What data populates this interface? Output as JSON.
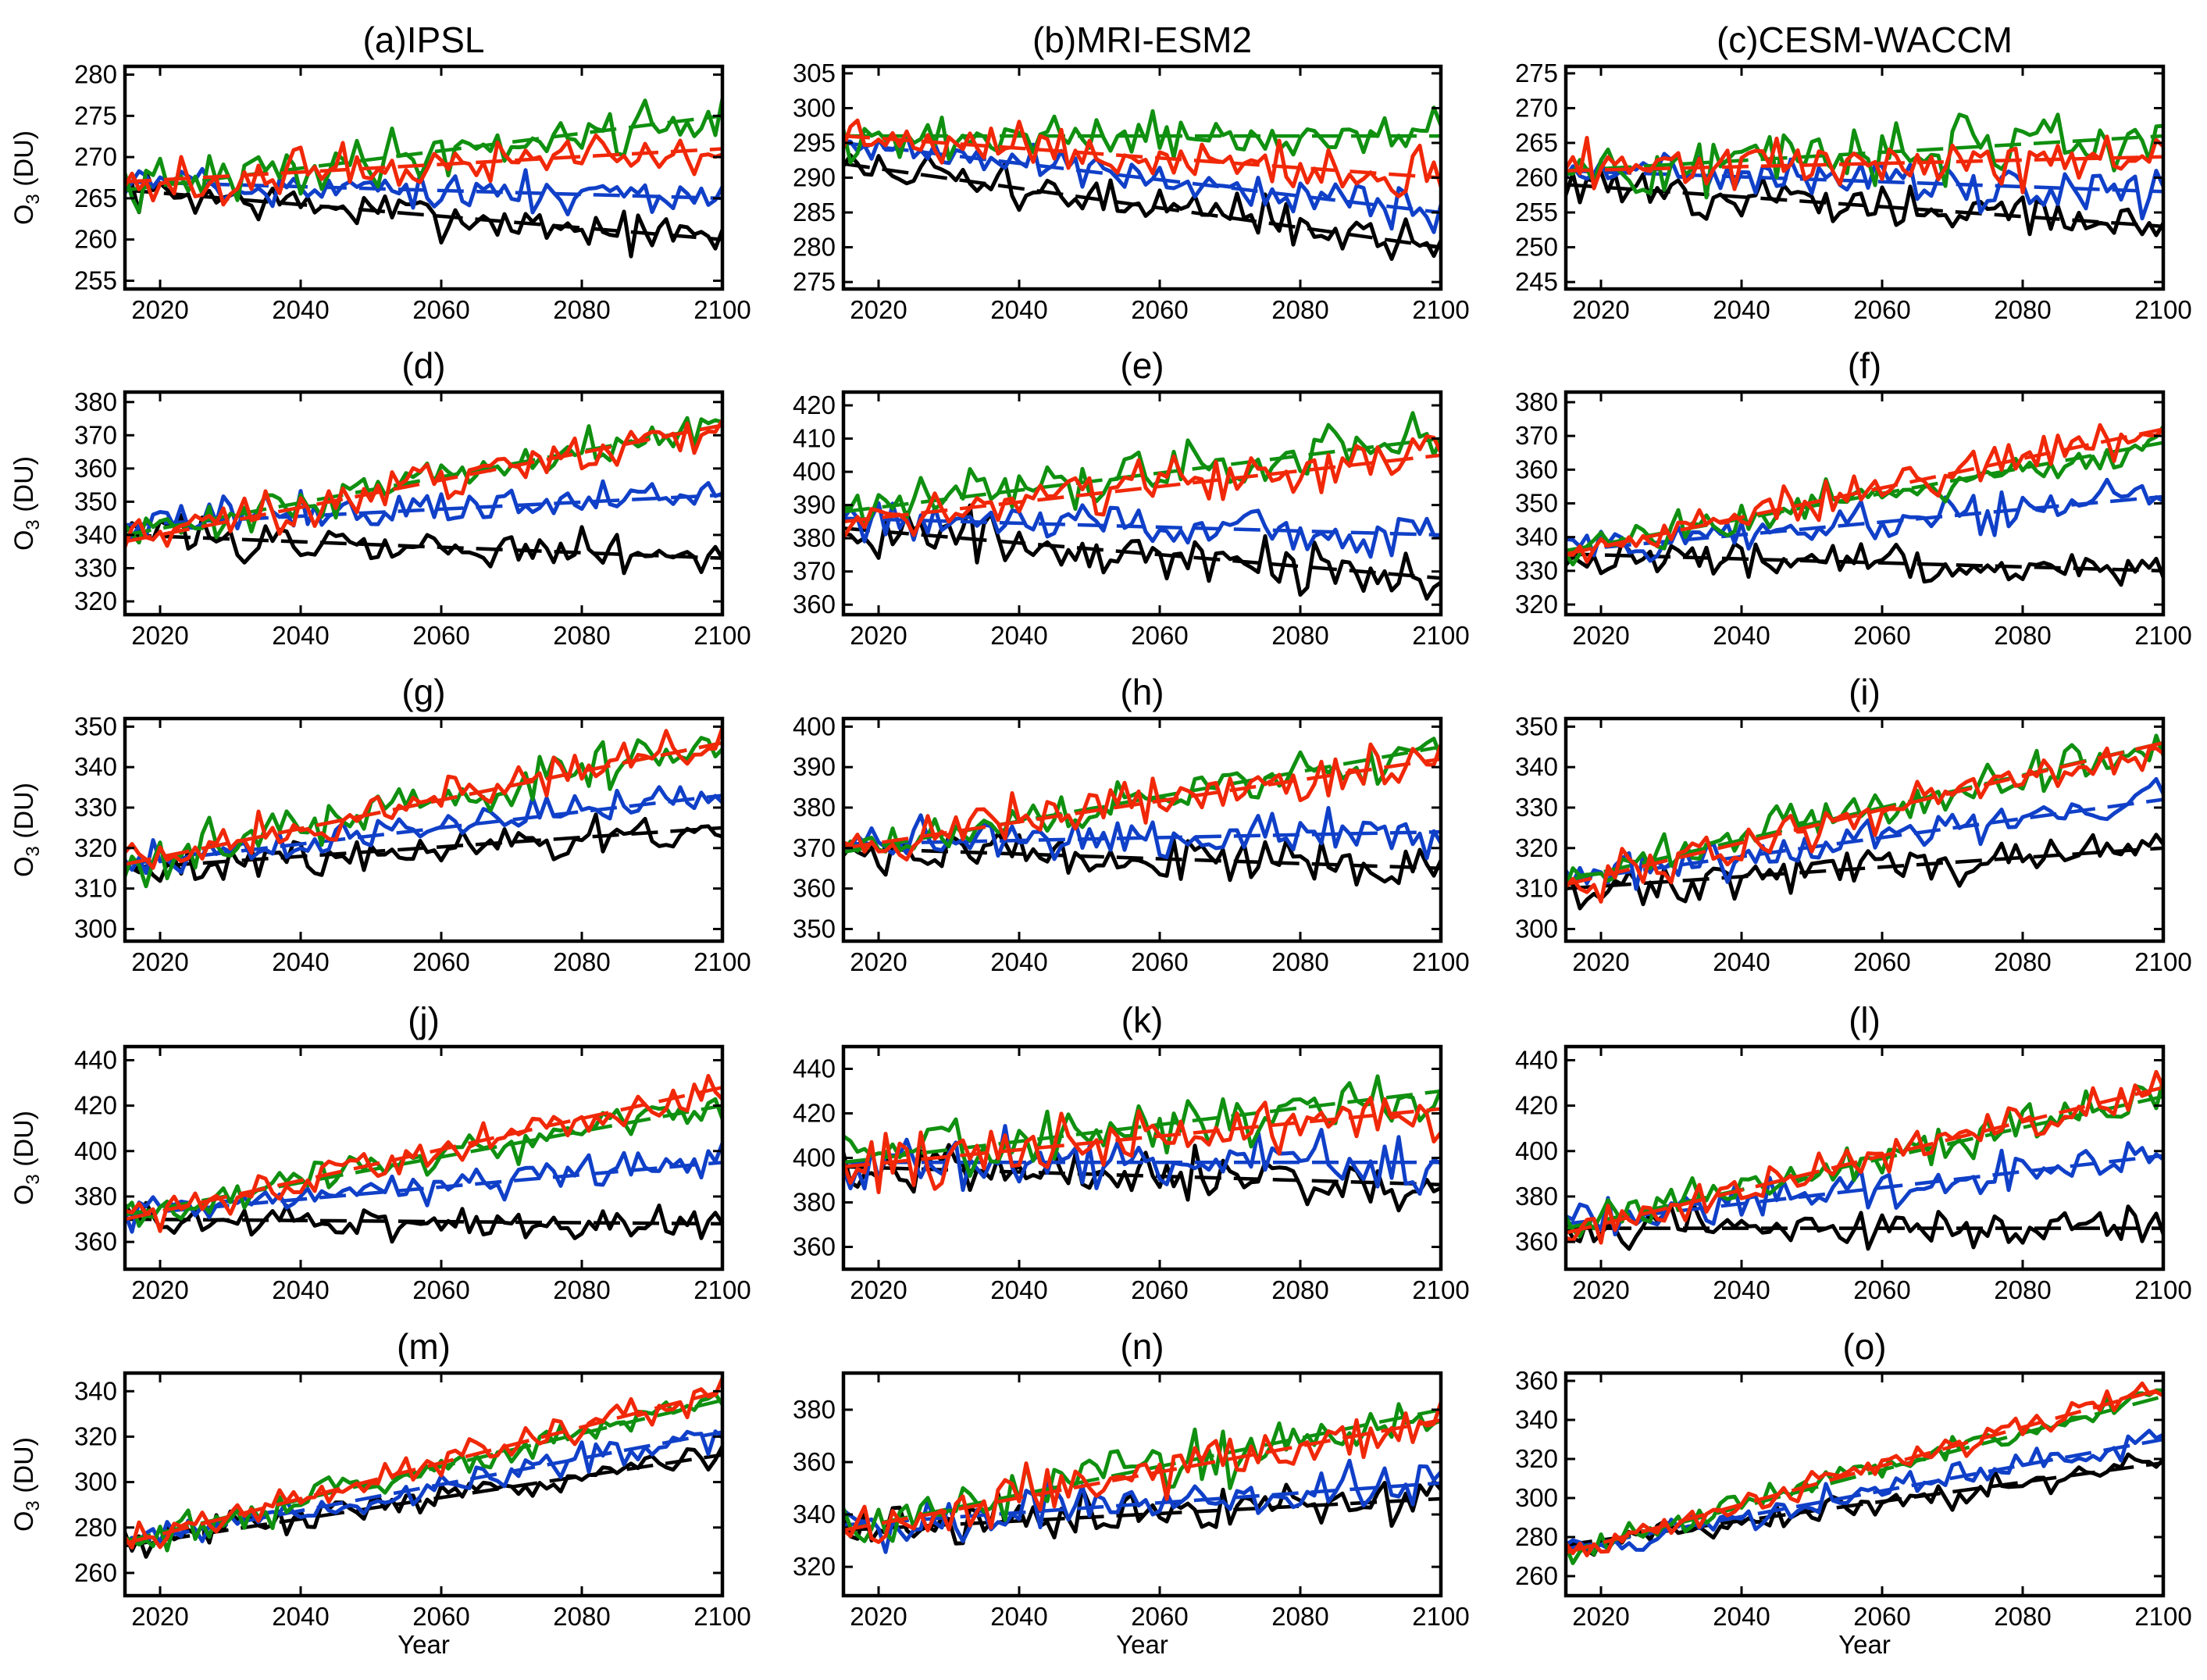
{
  "figure": {
    "ylabel": "O",
    "ylabel_sub": "3",
    "ylabel_unit": " (DU)",
    "xlabel": "Year"
  },
  "series_colors": {
    "black": "#000000",
    "blue": "#1040c8",
    "green": "#109010",
    "red": "#f02808"
  },
  "chart_data": [
    {
      "type": "line",
      "title": "(a)IPSL",
      "xlim": [
        2015,
        2100
      ],
      "ylim": [
        254,
        281
      ],
      "xticks": [
        2020,
        2040,
        2060,
        2080,
        2100
      ],
      "yticks": [
        255,
        260,
        265,
        270,
        275,
        280
      ],
      "xlabel": "",
      "ylabel": "O3 (DU)",
      "series": [
        {
          "name": "black",
          "start": 266,
          "end": 260,
          "noise": 2.0
        },
        {
          "name": "blue",
          "start": 267,
          "end": 265,
          "noise": 2.0
        },
        {
          "name": "green",
          "start": 266,
          "end": 275,
          "noise": 2.5
        },
        {
          "name": "red",
          "start": 267,
          "end": 271,
          "noise": 2.2
        }
      ]
    },
    {
      "type": "line",
      "title": "(b)MRI-ESM2",
      "xlim": [
        2015,
        2100
      ],
      "ylim": [
        274,
        306
      ],
      "xticks": [
        2020,
        2040,
        2060,
        2080,
        2100
      ],
      "yticks": [
        275,
        280,
        285,
        290,
        295,
        300,
        305
      ],
      "xlabel": "",
      "ylabel": "",
      "series": [
        {
          "name": "black",
          "start": 292,
          "end": 280,
          "noise": 2.5
        },
        {
          "name": "blue",
          "start": 295,
          "end": 285,
          "noise": 2.2
        },
        {
          "name": "green",
          "start": 296,
          "end": 296,
          "noise": 2.5
        },
        {
          "name": "red",
          "start": 296,
          "end": 290,
          "noise": 2.5
        }
      ]
    },
    {
      "type": "line",
      "title": "(c)CESM-WACCM",
      "xlim": [
        2015,
        2100
      ],
      "ylim": [
        244,
        276
      ],
      "xticks": [
        2020,
        2040,
        2060,
        2080,
        2100
      ],
      "yticks": [
        245,
        250,
        255,
        260,
        265,
        270,
        275
      ],
      "xlabel": "",
      "ylabel": "",
      "series": [
        {
          "name": "black",
          "start": 259,
          "end": 253,
          "noise": 2.5
        },
        {
          "name": "blue",
          "start": 261,
          "end": 258,
          "noise": 2.5
        },
        {
          "name": "green",
          "start": 261,
          "end": 266,
          "noise": 3.5
        },
        {
          "name": "red",
          "start": 261,
          "end": 263,
          "noise": 2.8
        }
      ]
    },
    {
      "type": "line",
      "title": "(d)",
      "xlim": [
        2015,
        2100
      ],
      "ylim": [
        316,
        383
      ],
      "xticks": [
        2020,
        2040,
        2060,
        2080,
        2100
      ],
      "yticks": [
        320,
        330,
        340,
        350,
        360,
        370,
        380
      ],
      "xlabel": "",
      "ylabel": "O3 (DU)",
      "series": [
        {
          "name": "black",
          "start": 340,
          "end": 333,
          "noise": 4.5
        },
        {
          "name": "blue",
          "start": 343,
          "end": 352,
          "noise": 4.5
        },
        {
          "name": "green",
          "start": 340,
          "end": 373,
          "noise": 4.5
        },
        {
          "name": "red",
          "start": 338,
          "end": 373,
          "noise": 4.5
        }
      ]
    },
    {
      "type": "line",
      "title": "(e)",
      "xlim": [
        2015,
        2100
      ],
      "ylim": [
        357,
        424
      ],
      "xticks": [
        2020,
        2040,
        2060,
        2080,
        2100
      ],
      "yticks": [
        360,
        370,
        380,
        390,
        400,
        410,
        420
      ],
      "xlabel": "",
      "ylabel": "",
      "series": [
        {
          "name": "black",
          "start": 383,
          "end": 368,
          "noise": 6.0
        },
        {
          "name": "blue",
          "start": 386,
          "end": 381,
          "noise": 5.5
        },
        {
          "name": "green",
          "start": 388,
          "end": 410,
          "noise": 6.0
        },
        {
          "name": "red",
          "start": 385,
          "end": 405,
          "noise": 6.0
        }
      ]
    },
    {
      "type": "line",
      "title": "(f)",
      "xlim": [
        2015,
        2100
      ],
      "ylim": [
        317,
        383
      ],
      "xticks": [
        2020,
        2040,
        2060,
        2080,
        2100
      ],
      "yticks": [
        320,
        330,
        340,
        350,
        360,
        370,
        380
      ],
      "xlabel": "",
      "ylabel": "",
      "series": [
        {
          "name": "black",
          "start": 335,
          "end": 330,
          "noise": 4.5
        },
        {
          "name": "blue",
          "start": 336,
          "end": 352,
          "noise": 4.5
        },
        {
          "name": "green",
          "start": 336,
          "end": 368,
          "noise": 4.5
        },
        {
          "name": "red",
          "start": 335,
          "end": 372,
          "noise": 4.5
        }
      ]
    },
    {
      "type": "line",
      "title": "(g)",
      "xlim": [
        2015,
        2100
      ],
      "ylim": [
        297,
        352
      ],
      "xticks": [
        2020,
        2040,
        2060,
        2080,
        2100
      ],
      "yticks": [
        300,
        310,
        320,
        330,
        340,
        350
      ],
      "xlabel": "",
      "ylabel": "O3 (DU)",
      "series": [
        {
          "name": "black",
          "start": 315,
          "end": 325,
          "noise": 3.5
        },
        {
          "name": "blue",
          "start": 316,
          "end": 333,
          "noise": 3.5
        },
        {
          "name": "green",
          "start": 316,
          "end": 346,
          "noise": 4.0
        },
        {
          "name": "red",
          "start": 316,
          "end": 346,
          "noise": 3.8
        }
      ]
    },
    {
      "type": "line",
      "title": "(h)",
      "xlim": [
        2015,
        2100
      ],
      "ylim": [
        347,
        402
      ],
      "xticks": [
        2020,
        2040,
        2060,
        2080,
        2100
      ],
      "yticks": [
        350,
        360,
        370,
        380,
        390,
        400
      ],
      "xlabel": "",
      "ylabel": "",
      "series": [
        {
          "name": "black",
          "start": 370,
          "end": 365,
          "noise": 4.5
        },
        {
          "name": "blue",
          "start": 371,
          "end": 374,
          "noise": 4.0
        },
        {
          "name": "green",
          "start": 369,
          "end": 395,
          "noise": 4.5
        },
        {
          "name": "red",
          "start": 370,
          "end": 392,
          "noise": 4.5
        }
      ]
    },
    {
      "type": "line",
      "title": "(i)",
      "xlim": [
        2015,
        2100
      ],
      "ylim": [
        297,
        352
      ],
      "xticks": [
        2020,
        2040,
        2060,
        2080,
        2100
      ],
      "yticks": [
        300,
        310,
        320,
        330,
        340,
        350
      ],
      "xlabel": "",
      "ylabel": "",
      "series": [
        {
          "name": "black",
          "start": 310,
          "end": 320,
          "noise": 4.0
        },
        {
          "name": "blue",
          "start": 312,
          "end": 332,
          "noise": 4.0
        },
        {
          "name": "green",
          "start": 312,
          "end": 346,
          "noise": 4.0
        },
        {
          "name": "red",
          "start": 311,
          "end": 346,
          "noise": 4.0
        }
      ]
    },
    {
      "type": "line",
      "title": "(j)",
      "xlim": [
        2015,
        2100
      ],
      "ylim": [
        348,
        446
      ],
      "xticks": [
        2020,
        2040,
        2060,
        2080,
        2100
      ],
      "yticks": [
        360,
        380,
        400,
        420,
        440
      ],
      "xlabel": "",
      "ylabel": "O3 (DU)",
      "series": [
        {
          "name": "black",
          "start": 370,
          "end": 368,
          "noise": 5.5
        },
        {
          "name": "blue",
          "start": 372,
          "end": 395,
          "noise": 6.0
        },
        {
          "name": "green",
          "start": 372,
          "end": 420,
          "noise": 6.0
        },
        {
          "name": "red",
          "start": 370,
          "end": 428,
          "noise": 6.0
        }
      ]
    },
    {
      "type": "line",
      "title": "(k)",
      "xlim": [
        2015,
        2100
      ],
      "ylim": [
        350,
        450
      ],
      "xticks": [
        2020,
        2040,
        2060,
        2080,
        2100
      ],
      "yticks": [
        360,
        380,
        400,
        420,
        440
      ],
      "xlabel": "",
      "ylabel": "",
      "series": [
        {
          "name": "black",
          "start": 396,
          "end": 388,
          "noise": 9.0
        },
        {
          "name": "blue",
          "start": 398,
          "end": 398,
          "noise": 10.0
        },
        {
          "name": "green",
          "start": 398,
          "end": 430,
          "noise": 10.0
        },
        {
          "name": "red",
          "start": 396,
          "end": 422,
          "noise": 10.0
        }
      ]
    },
    {
      "type": "line",
      "title": "(l)",
      "xlim": [
        2015,
        2100
      ],
      "ylim": [
        348,
        446
      ],
      "xticks": [
        2020,
        2040,
        2060,
        2080,
        2100
      ],
      "yticks": [
        360,
        380,
        400,
        420,
        440
      ],
      "xlabel": "",
      "ylabel": "",
      "series": [
        {
          "name": "black",
          "start": 366,
          "end": 366,
          "noise": 7.0
        },
        {
          "name": "blue",
          "start": 368,
          "end": 398,
          "noise": 7.0
        },
        {
          "name": "green",
          "start": 366,
          "end": 424,
          "noise": 7.0
        },
        {
          "name": "red",
          "start": 364,
          "end": 428,
          "noise": 7.0
        }
      ]
    },
    {
      "type": "line",
      "title": "(m)",
      "xlim": [
        2015,
        2100
      ],
      "ylim": [
        250,
        348
      ],
      "xticks": [
        2020,
        2040,
        2060,
        2080,
        2100
      ],
      "yticks": [
        260,
        280,
        300,
        320,
        340
      ],
      "xlabel": "Year",
      "ylabel": "O3 (DU)",
      "series": [
        {
          "name": "black",
          "start": 272,
          "end": 312,
          "noise": 5.5
        },
        {
          "name": "blue",
          "start": 273,
          "end": 322,
          "noise": 5.5
        },
        {
          "name": "green",
          "start": 274,
          "end": 336,
          "noise": 5.5
        },
        {
          "name": "red",
          "start": 273,
          "end": 340,
          "noise": 5.5
        }
      ]
    },
    {
      "type": "line",
      "title": "(n)",
      "xlim": [
        2015,
        2100
      ],
      "ylim": [
        309,
        394
      ],
      "xticks": [
        2020,
        2040,
        2060,
        2080,
        2100
      ],
      "yticks": [
        320,
        340,
        360,
        380
      ],
      "xlabel": "Year",
      "ylabel": "",
      "series": [
        {
          "name": "black",
          "start": 334,
          "end": 346,
          "noise": 7.0
        },
        {
          "name": "blue",
          "start": 336,
          "end": 352,
          "noise": 7.0
        },
        {
          "name": "green",
          "start": 334,
          "end": 380,
          "noise": 8.0
        },
        {
          "name": "red",
          "start": 334,
          "end": 376,
          "noise": 8.0
        }
      ]
    },
    {
      "type": "line",
      "title": "(o)",
      "xlim": [
        2015,
        2100
      ],
      "ylim": [
        250,
        364
      ],
      "xticks": [
        2020,
        2040,
        2060,
        2080,
        2100
      ],
      "yticks": [
        260,
        280,
        300,
        320,
        340,
        360
      ],
      "xlabel": "Year",
      "ylabel": "",
      "series": [
        {
          "name": "black",
          "start": 276,
          "end": 318,
          "noise": 6.0
        },
        {
          "name": "blue",
          "start": 274,
          "end": 330,
          "noise": 6.0
        },
        {
          "name": "green",
          "start": 272,
          "end": 352,
          "noise": 6.0
        },
        {
          "name": "red",
          "start": 272,
          "end": 356,
          "noise": 6.0
        }
      ]
    }
  ]
}
